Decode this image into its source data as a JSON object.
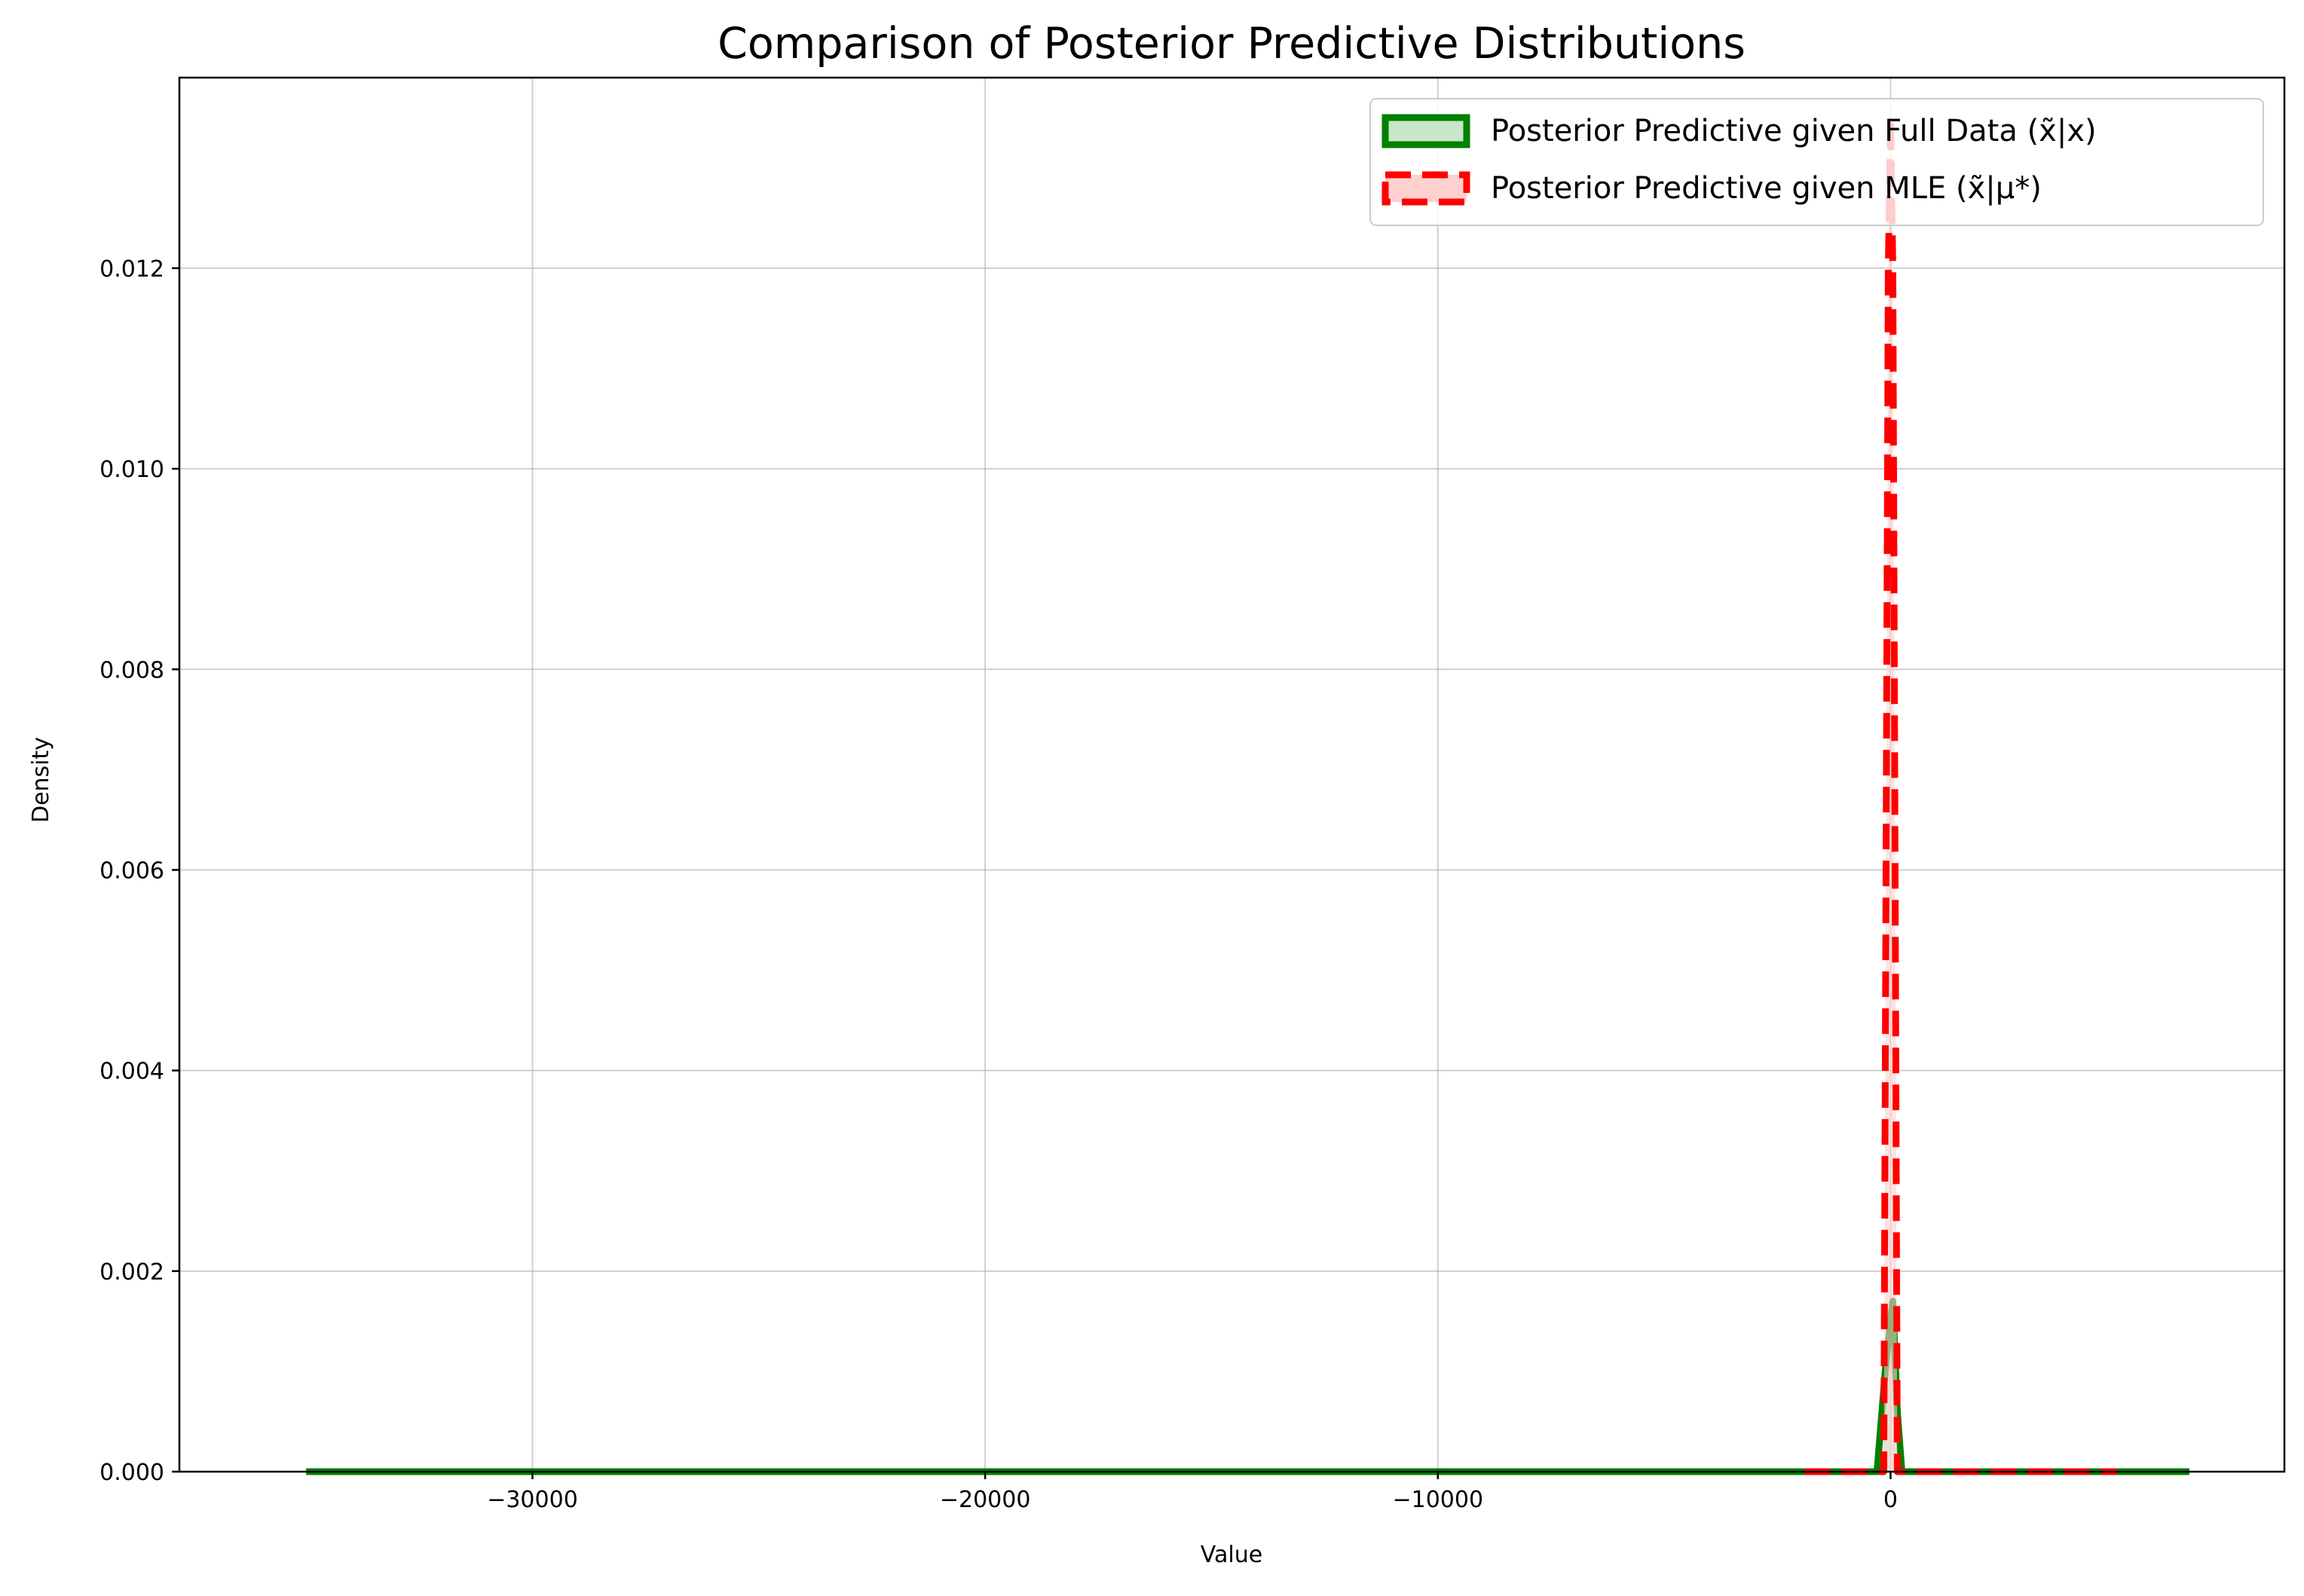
{
  "chart_data": {
    "type": "area",
    "title": "Comparison of Posterior Predictive Distributions",
    "xlabel": "Value",
    "ylabel": "Density",
    "xlim": [
      -37800,
      8700
    ],
    "ylim": [
      0,
      0.0139
    ],
    "xticks": [
      -30000,
      -20000,
      -10000,
      0
    ],
    "xtick_labels": [
      "−30000",
      "−20000",
      "−10000",
      "0"
    ],
    "yticks": [
      0.0,
      0.002,
      0.004,
      0.006,
      0.008,
      0.01,
      0.012
    ],
    "ytick_labels": [
      "0.000",
      "0.002",
      "0.004",
      "0.006",
      "0.008",
      "0.010",
      "0.012"
    ],
    "grid": true,
    "legend_position": "top-right",
    "series": [
      {
        "name": "Posterior Predictive given Full Data (x̃|x)",
        "color": "#008000",
        "fill": "#c8e6c8",
        "line_style": "solid",
        "x": [
          -35000,
          -300,
          -100,
          50,
          150,
          250,
          6600
        ],
        "y": [
          0,
          0,
          0.0011,
          0.0017,
          0.0006,
          0,
          0
        ]
      },
      {
        "name": "Posterior Predictive given MLE (x̃|μ*)",
        "color": "#ff0000",
        "fill": "#ffd0d0",
        "line_style": "dashed",
        "x": [
          -1900,
          -150,
          -50,
          0,
          50,
          150,
          5000
        ],
        "y": [
          0,
          0,
          0.012,
          0.0135,
          0.012,
          0,
          0
        ]
      }
    ]
  }
}
